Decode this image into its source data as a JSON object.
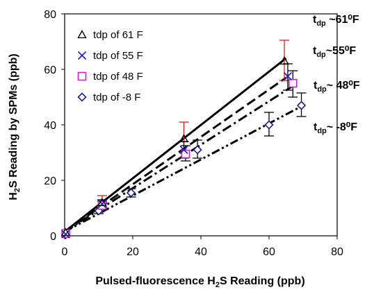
{
  "chart_data": {
    "type": "scatter",
    "xlabel": {
      "pre": "Pulsed-fluorescence H",
      "sub": "2",
      "post": "S Reading (ppb)"
    },
    "ylabel": {
      "pre": "H",
      "sub": "2",
      "post": "S Reading by SPMs (ppb)"
    },
    "xlim": [
      0,
      80
    ],
    "ylim": [
      0,
      80
    ],
    "xticks": [
      "0",
      "20",
      "40",
      "60",
      "80"
    ],
    "yticks": [
      "0",
      "20",
      "40",
      "60",
      "80"
    ],
    "grid": false,
    "legend_position": "top-left",
    "series": [
      {
        "name": "tdp of 61 F",
        "marker": "triangle",
        "color": "#000000",
        "errcolor": "#d42020",
        "points": [
          [
            0.3,
            1.2
          ],
          [
            11,
            12
          ],
          [
            35,
            35
          ],
          [
            64.5,
            63
          ]
        ],
        "errors": [
          [
            0,
            0
          ],
          [
            1.5,
            2.5
          ],
          [
            5,
            6
          ],
          [
            7,
            7.5
          ]
        ],
        "fit": {
          "style": "solid",
          "x": [
            0,
            65
          ],
          "y": [
            1.5,
            64
          ]
        }
      },
      {
        "name": "tdp of 55 F",
        "marker": "x",
        "color": "#1a1adc",
        "errcolor": "#000000",
        "points": [
          [
            0.3,
            0.6
          ],
          [
            11,
            11.5
          ],
          [
            35,
            31
          ],
          [
            65.5,
            57.5
          ]
        ],
        "errors": [
          [
            0,
            0
          ],
          [
            1.5,
            1.5
          ],
          [
            3,
            3
          ],
          [
            5,
            4.5
          ]
        ],
        "fit": {
          "style": "dashed",
          "x": [
            0,
            65
          ],
          "y": [
            1.5,
            57
          ]
        }
      },
      {
        "name": "tdp of 48 F",
        "marker": "square",
        "color": "#d01fd0",
        "errcolor": "#000000",
        "points": [
          [
            0.3,
            0.8
          ],
          [
            11,
            11
          ],
          [
            35.5,
            29.5
          ],
          [
            67,
            55
          ]
        ],
        "errors": [
          [
            0,
            0
          ],
          [
            1,
            1.5
          ],
          [
            2.5,
            3
          ],
          [
            5,
            4.5
          ]
        ],
        "fit": {
          "style": "dashdot",
          "x": [
            0,
            67
          ],
          "y": [
            1.5,
            54
          ]
        }
      },
      {
        "name": "tdp of -8 F",
        "marker": "diamond",
        "color": "#1f1f8e",
        "errcolor": "#000000",
        "points": [
          [
            0.3,
            0.4
          ],
          [
            10,
            9
          ],
          [
            19.5,
            15.5
          ],
          [
            39,
            31
          ],
          [
            60,
            40
          ],
          [
            69.5,
            47
          ]
        ],
        "errors": [
          [
            0,
            0
          ],
          [
            1,
            1
          ],
          [
            1.5,
            1.5
          ],
          [
            3,
            3.5
          ],
          [
            4,
            4.5
          ],
          [
            4,
            4.5
          ]
        ],
        "fit": {
          "style": "dashdotdot",
          "x": [
            0,
            70
          ],
          "y": [
            1.5,
            47
          ]
        }
      }
    ],
    "annotations": [
      {
        "pre": "t",
        "sub": "dp",
        "post": " ~61⁰F"
      },
      {
        "pre": "t",
        "sub": "dp",
        "post": "~55⁰F"
      },
      {
        "pre": "t",
        "sub": "dp",
        "post": "~ 48⁰F"
      },
      {
        "pre": "t",
        "sub": "dp",
        "post": "~ -8⁰F"
      }
    ]
  }
}
